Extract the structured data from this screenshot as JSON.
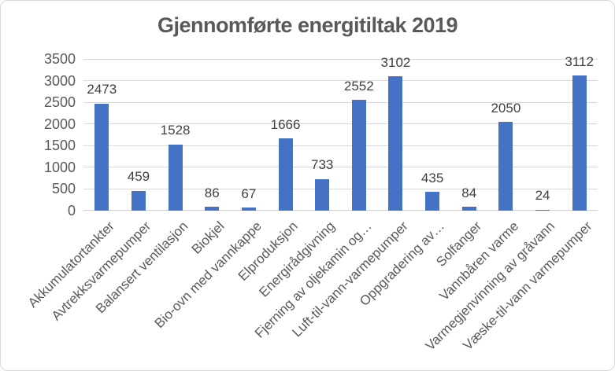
{
  "chart_data": {
    "type": "bar",
    "title": "Gjennomførte energitiltak 2019",
    "categories": [
      "Akkumulatortankter",
      "Avtrekksvarmepumper",
      "Balansert ventilasjon",
      "Biokjel",
      "Bio-ovn med vannkappe",
      "Elproduksjon",
      "Energirådgivning",
      "Fjerning av oljekamin og…",
      "Luft-til-vann-varmepumper",
      "Oppgradering av…",
      "Solfanger",
      "Vannbåren varme",
      "Varmegjenvinning av gråvann",
      "Væske-til-vann varmepumper"
    ],
    "values": [
      2473,
      459,
      1528,
      86,
      67,
      1666,
      733,
      2552,
      3102,
      435,
      84,
      2050,
      24,
      3112
    ],
    "data_labels": [
      2473,
      459,
      1528,
      86,
      67,
      1666,
      733,
      2552,
      3102,
      435,
      84,
      2050,
      24,
      3112
    ],
    "xlabel": "",
    "ylabel": "",
    "ylim": [
      0,
      3500
    ],
    "ytick_interval": 500,
    "yticks": [
      0,
      500,
      1000,
      1500,
      2000,
      2500,
      3000,
      3500
    ],
    "grid": true,
    "legend_position": "none",
    "colors": {
      "bar": "#4472C4",
      "gridline": "#D9D9D9",
      "axis_label": "#595959",
      "data_label": "#404040",
      "title": "#595959",
      "border": "#D9D9D9",
      "background": "#FFFFFF"
    }
  }
}
